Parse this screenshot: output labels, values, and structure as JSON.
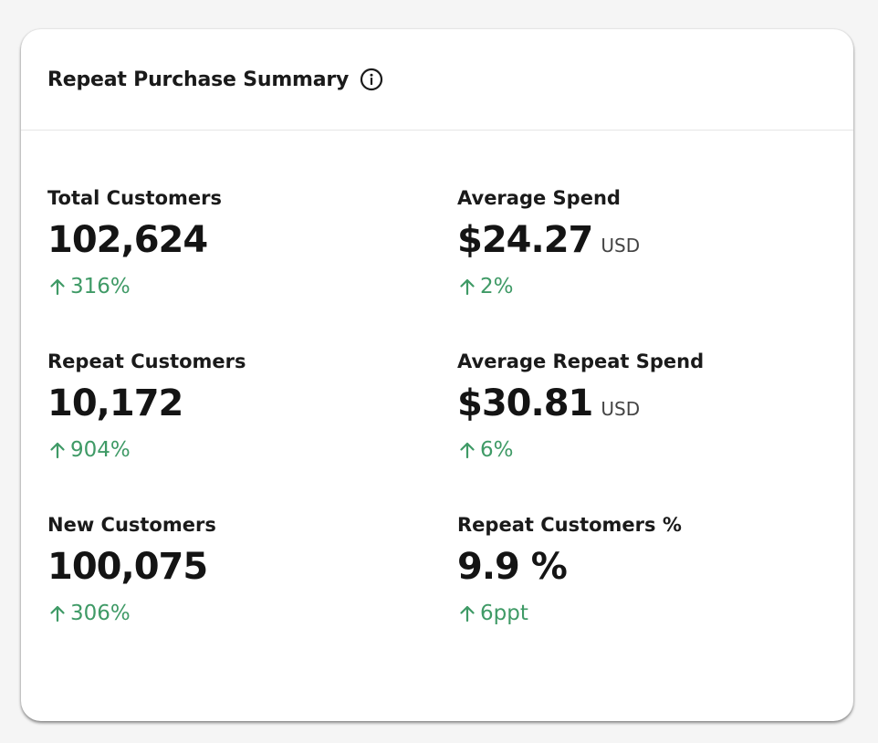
{
  "card": {
    "title": "Repeat Purchase Summary",
    "info_icon": "info-circle-icon"
  },
  "colors": {
    "positive_change": "#3f9a66",
    "background": "#f5f5f5",
    "card": "#ffffff"
  },
  "metrics": [
    {
      "label": "Total Customers",
      "value": "102,624",
      "unit": "",
      "change": "316%",
      "change_icon": "arrow-up-icon"
    },
    {
      "label": "Average Spend",
      "value": "$24.27",
      "unit": "USD",
      "change": "2%",
      "change_icon": "arrow-up-icon"
    },
    {
      "label": "Repeat Customers",
      "value": "10,172",
      "unit": "",
      "change": "904%",
      "change_icon": "arrow-up-icon"
    },
    {
      "label": "Average Repeat Spend",
      "value": "$30.81",
      "unit": "USD",
      "change": "6%",
      "change_icon": "arrow-up-icon"
    },
    {
      "label": "New Customers",
      "value": "100,075",
      "unit": "",
      "change": "306%",
      "change_icon": "arrow-up-icon"
    },
    {
      "label": "Repeat Customers %",
      "value": "9.9 %",
      "unit": "",
      "change": "6ppt",
      "change_icon": "arrow-up-icon"
    }
  ]
}
